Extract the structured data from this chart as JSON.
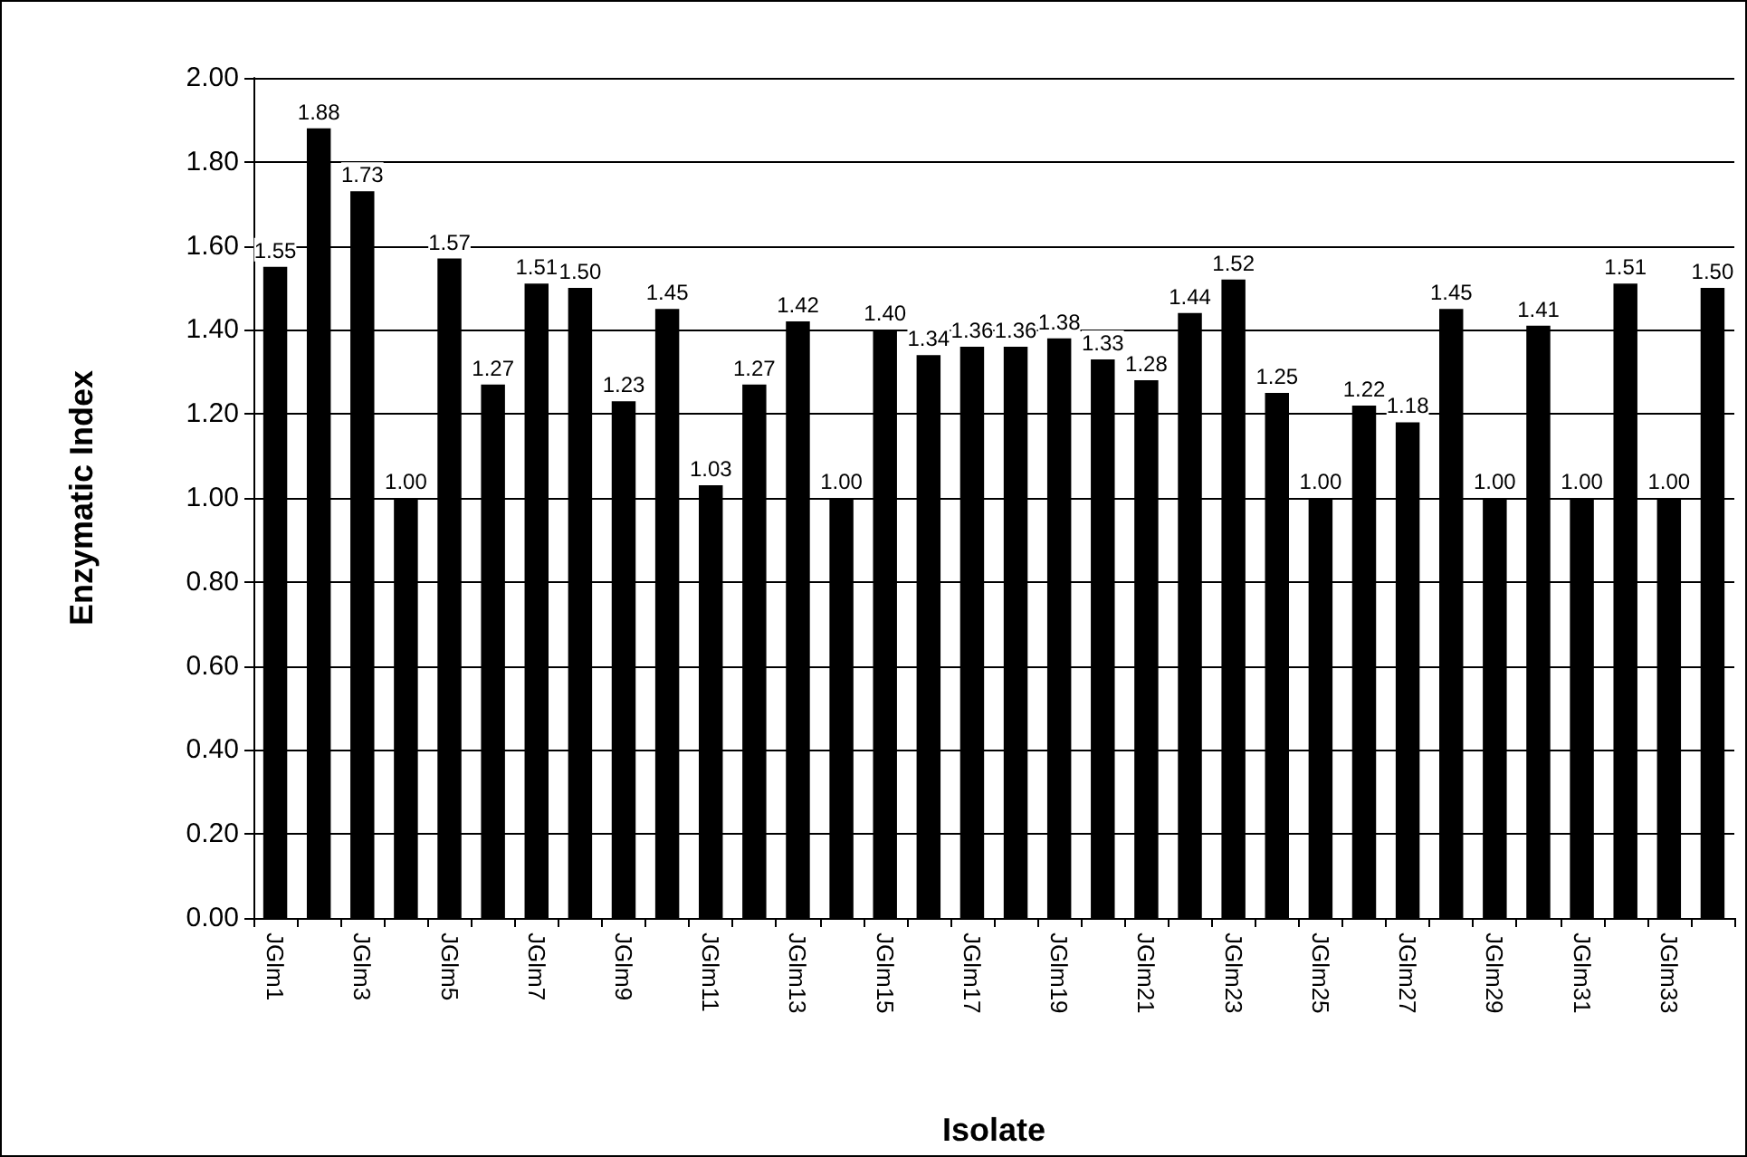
{
  "chart_data": {
    "type": "bar",
    "xlabel": "Isolate",
    "ylabel": "Enzymatic Index",
    "categories": [
      "JGlm1",
      null,
      "JGlm3",
      null,
      "JGlm5",
      null,
      "JGlm7",
      null,
      "JGlm9",
      null,
      "JGlm11",
      null,
      "JGlm13",
      null,
      "JGlm15",
      null,
      "JGlm17",
      null,
      "JGlm19",
      null,
      "JGlm21",
      null,
      "JGlm23",
      null,
      "JGlm25",
      null,
      "JGlm27",
      null,
      "JGlm29",
      null,
      "JGlm31",
      null,
      "JGlm33",
      null
    ],
    "values": [
      1.55,
      1.88,
      1.73,
      1.0,
      1.57,
      1.27,
      1.51,
      1.5,
      1.23,
      1.45,
      1.03,
      1.27,
      1.42,
      1.0,
      1.4,
      1.34,
      1.36,
      1.36,
      1.38,
      1.33,
      1.28,
      1.44,
      1.52,
      1.25,
      1.0,
      1.22,
      1.18,
      1.45,
      1.0,
      1.41,
      1.0,
      1.51,
      1.0,
      1.5
    ],
    "value_labels": [
      "1.55",
      "1.88",
      "1.73",
      "1.00",
      "1.57",
      "1.27",
      "1.51",
      "1.50",
      "1.23",
      "1.45",
      "1.03",
      "1.27",
      "1.42",
      "1.00",
      "1.40",
      "1.34",
      "1.36",
      "1.36",
      "1.38",
      "1.33",
      "1.28",
      "1.44",
      "1.52",
      "1.25",
      "1.00",
      "1.22",
      "1.18",
      "1.45",
      "1.00",
      "1.41",
      "1.00",
      "1.51",
      "1.00",
      "1.50"
    ],
    "color": "#000000",
    "ylim": [
      0,
      2
    ],
    "yticks": [
      {
        "value": 0,
        "label": "0.00"
      },
      {
        "value": 0.2,
        "label": "0.20"
      },
      {
        "value": 0.4,
        "label": "0.40"
      },
      {
        "value": 0.6,
        "label": "0.60"
      },
      {
        "value": 0.8,
        "label": "0.80"
      },
      {
        "value": 1,
        "label": "1.00"
      },
      {
        "value": 1.2,
        "label": "1.20"
      },
      {
        "value": 1.4,
        "label": "1.40"
      },
      {
        "value": 1.6,
        "label": "1.60"
      },
      {
        "value": 1.8,
        "label": "1.80"
      },
      {
        "value": 2,
        "label": "2.00"
      }
    ],
    "grid": "y"
  }
}
